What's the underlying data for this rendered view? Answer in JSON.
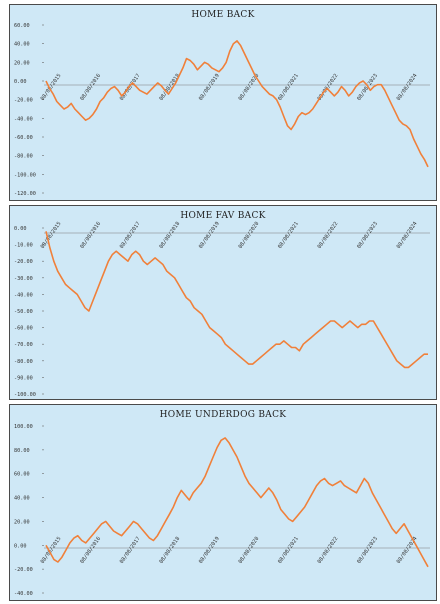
{
  "chart_data": [
    {
      "type": "line",
      "title": "HOME BACK",
      "series": [
        {
          "values": [
            0,
            -8,
            -14,
            -22,
            -26,
            -30,
            -28,
            -24,
            -30,
            -34,
            -38,
            -42,
            -40,
            -36,
            -30,
            -22,
            -18,
            -12,
            -8,
            -6,
            -10,
            -16,
            -12,
            -6,
            -2,
            -6,
            -10,
            -12,
            -14,
            -10,
            -6,
            -2,
            -5,
            -10,
            -14,
            -8,
            -2,
            6,
            14,
            24,
            22,
            18,
            12,
            16,
            20,
            18,
            14,
            12,
            10,
            14,
            20,
            32,
            40,
            43,
            38,
            30,
            22,
            14,
            6,
            0,
            -6,
            -10,
            -14,
            -16,
            -20,
            -28,
            -38,
            -48,
            -52,
            -46,
            -38,
            -34,
            -36,
            -34,
            -30,
            -24,
            -18,
            -12,
            -8,
            -12,
            -16,
            -12,
            -6,
            -10,
            -16,
            -12,
            -6,
            -2,
            0,
            -4,
            -10,
            -6,
            -4,
            -4,
            -10,
            -18,
            -26,
            -34,
            -42,
            -46,
            -48,
            -52,
            -62,
            -70,
            -78,
            -84,
            -92
          ]
        }
      ],
      "x_ticks": [
        "08/08/2015",
        "08/08/2016",
        "08/08/2017",
        "08/08/2018",
        "08/08/2019",
        "08/08/2020",
        "08/08/2021",
        "08/08/2022",
        "08/08/2023",
        "08/08/2024"
      ],
      "y_ticks": [
        "60.00",
        "40.00",
        "20.00",
        "0.00",
        "-20.00",
        "-40.00",
        "-60.00",
        "-80.00",
        "-100.00",
        "-120.00"
      ],
      "ylim": [
        -120,
        60
      ],
      "grid": false,
      "colors": {
        "line": "#f0803a",
        "background": "#cfe8f6"
      }
    },
    {
      "type": "line",
      "title": "HOME FAV BACK",
      "series": [
        {
          "values": [
            -2,
            -12,
            -20,
            -26,
            -30,
            -34,
            -36,
            -38,
            -40,
            -44,
            -48,
            -50,
            -44,
            -38,
            -32,
            -26,
            -20,
            -16,
            -14,
            -16,
            -18,
            -20,
            -16,
            -14,
            -16,
            -20,
            -22,
            -20,
            -18,
            -20,
            -22,
            -26,
            -28,
            -30,
            -34,
            -38,
            -42,
            -44,
            -48,
            -50,
            -52,
            -56,
            -60,
            -62,
            -64,
            -66,
            -70,
            -72,
            -74,
            -76,
            -78,
            -80,
            -82,
            -82,
            -80,
            -78,
            -76,
            -74,
            -72,
            -70,
            -70,
            -68,
            -70,
            -72,
            -72,
            -74,
            -70,
            -68,
            -66,
            -64,
            -62,
            -60,
            -58,
            -56,
            -56,
            -58,
            -60,
            -58,
            -56,
            -58,
            -60,
            -58,
            -58,
            -56,
            -56,
            -60,
            -64,
            -68,
            -72,
            -76,
            -80,
            -82,
            -84,
            -84,
            -82,
            -80,
            -78,
            -76,
            -76
          ]
        }
      ],
      "x_ticks": [
        "08/08/2015",
        "08/08/2016",
        "08/08/2017",
        "08/08/2018",
        "08/08/2019",
        "08/08/2020",
        "08/08/2021",
        "08/08/2022",
        "08/08/2023",
        "08/08/2024"
      ],
      "y_ticks": [
        "0.00",
        "-10.00",
        "-20.00",
        "-30.00",
        "-40.00",
        "-50.00",
        "-60.00",
        "-70.00",
        "-80.00",
        "-90.00",
        "-100.00"
      ],
      "ylim": [
        -100,
        0
      ],
      "grid": false,
      "colors": {
        "line": "#f0803a",
        "background": "#cfe8f6"
      }
    },
    {
      "type": "line",
      "title": "HOME UNDERDOG BACK",
      "series": [
        {
          "values": [
            0,
            -6,
            -12,
            -14,
            -10,
            -4,
            2,
            6,
            8,
            4,
            2,
            6,
            10,
            14,
            18,
            20,
            16,
            12,
            10,
            8,
            12,
            16,
            20,
            18,
            14,
            10,
            6,
            4,
            8,
            14,
            20,
            26,
            32,
            40,
            46,
            42,
            38,
            44,
            48,
            52,
            58,
            66,
            74,
            82,
            88,
            90,
            86,
            80,
            74,
            66,
            58,
            52,
            48,
            44,
            40,
            44,
            48,
            44,
            38,
            30,
            26,
            22,
            20,
            24,
            28,
            32,
            38,
            44,
            50,
            54,
            56,
            52,
            50,
            52,
            54,
            50,
            48,
            46,
            44,
            50,
            56,
            52,
            44,
            38,
            32,
            26,
            20,
            14,
            10,
            14,
            18,
            12,
            6,
            0,
            -6,
            -12,
            -18
          ]
        }
      ],
      "x_ticks": [
        "08/08/2015",
        "08/08/2016",
        "08/08/2017",
        "08/08/2018",
        "08/08/2019",
        "08/08/2020",
        "08/08/2021",
        "08/08/2022",
        "08/08/2023",
        "08/08/2024"
      ],
      "y_ticks": [
        "100.00",
        "80.00",
        "60.00",
        "40.00",
        "20.00",
        "0.00",
        "-20.00",
        "-40.00"
      ],
      "ylim": [
        -40,
        100
      ],
      "grid": false,
      "colors": {
        "line": "#f0803a",
        "background": "#cfe8f6"
      }
    }
  ]
}
